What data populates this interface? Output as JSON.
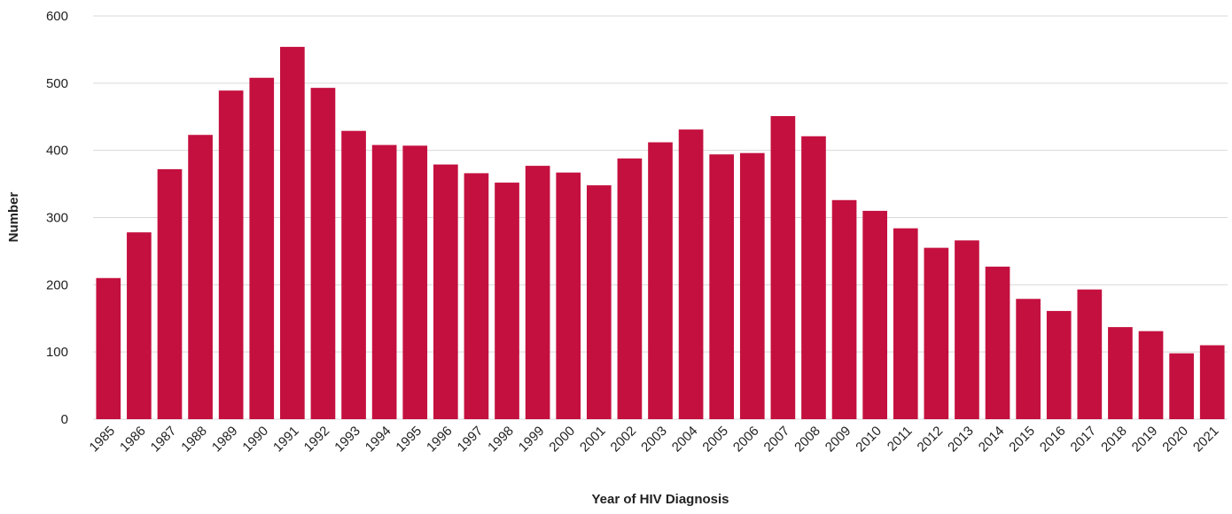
{
  "chart_data": {
    "type": "bar",
    "x_label": "Year of HIV Diagnosis",
    "y_label": "Number",
    "categories": [
      "1985",
      "1986",
      "1987",
      "1988",
      "1989",
      "1990",
      "1991",
      "1992",
      "1993",
      "1994",
      "1995",
      "1996",
      "1997",
      "1998",
      "1999",
      "2000",
      "2001",
      "2002",
      "2003",
      "2004",
      "2005",
      "2006",
      "2007",
      "2008",
      "2009",
      "2010",
      "2011",
      "2012",
      "2013",
      "2014",
      "2015",
      "2016",
      "2017",
      "2018",
      "2019",
      "2020",
      "2021"
    ],
    "values": [
      210,
      278,
      372,
      423,
      489,
      508,
      554,
      493,
      429,
      408,
      407,
      379,
      366,
      352,
      377,
      367,
      348,
      388,
      412,
      431,
      394,
      396,
      451,
      421,
      326,
      310,
      284,
      255,
      266,
      227,
      179,
      161,
      193,
      137,
      131,
      98,
      110
    ],
    "color": "#c4103f",
    "ylim": [
      0,
      600
    ],
    "yticks": [
      0,
      100,
      200,
      300,
      400,
      500,
      600
    ],
    "grid": true
  }
}
